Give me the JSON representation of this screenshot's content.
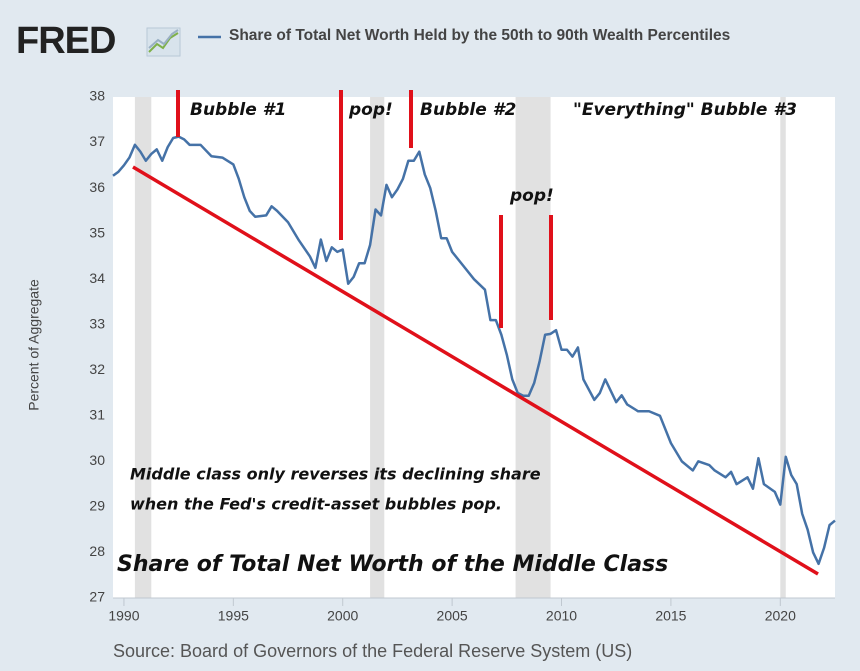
{
  "chart_data": {
    "type": "line",
    "brand": "FRED",
    "y_label": "Percent of Aggregate",
    "source": "Source: Board of Governors of the Federal Reserve System (US)",
    "xlim": [
      1989.5,
      2022.5
    ],
    "xticks": [
      1990,
      1995,
      2000,
      2005,
      2010,
      2015,
      2020
    ],
    "ylim": [
      27,
      38
    ],
    "yticks": [
      27,
      28,
      29,
      30,
      31,
      32,
      33,
      34,
      35,
      36,
      37,
      38
    ],
    "grid": false,
    "recessions": [
      [
        1990.5,
        1991.25
      ],
      [
        2001.25,
        2001.9
      ],
      [
        2007.9,
        2009.5
      ],
      [
        2020,
        2020.25
      ]
    ],
    "annotations": [
      "Bubble #1",
      "pop!",
      "Bubble #2",
      "\"Everything\" Bubble #3",
      "pop!",
      "Middle class only reverses its declining share",
      "when the Fed's credit-asset bubbles pop.",
      "Share of Total Net Worth of the Middle Class"
    ],
    "x": [
      1989.5,
      1989.75,
      1990,
      1990.25,
      1990.5,
      1990.75,
      1991,
      1991.25,
      1991.5,
      1991.75,
      1992,
      1992.25,
      1992.5,
      1992.75,
      1993,
      1993.5,
      1994,
      1994.5,
      1995,
      1995.25,
      1995.5,
      1995.75,
      1996,
      1996.5,
      1996.75,
      1997,
      1997.5,
      1998,
      1998.5,
      1998.75,
      1999,
      1999.25,
      1999.5,
      1999.75,
      2000,
      2000.25,
      2000.5,
      2000.75,
      2001,
      2001.25,
      2001.5,
      2001.75,
      2002,
      2002.25,
      2002.5,
      2002.75,
      2003,
      2003.25,
      2003.5,
      2003.75,
      2004,
      2004.25,
      2004.5,
      2004.75,
      2005,
      2005.5,
      2006,
      2006.5,
      2006.75,
      2007,
      2007.25,
      2007.5,
      2007.75,
      2008,
      2008.25,
      2008.5,
      2008.75,
      2009,
      2009.25,
      2009.5,
      2009.75,
      2010,
      2010.25,
      2010.5,
      2010.75,
      2011,
      2011.5,
      2011.75,
      2012,
      2012.5,
      2012.75,
      2013,
      2013.5,
      2014,
      2014.5,
      2015,
      2015.5,
      2016,
      2016.25,
      2016.75,
      2017,
      2017.5,
      2017.75,
      2018,
      2018.5,
      2018.75,
      2019,
      2019.25,
      2019.75,
      2020,
      2020.25,
      2020.5,
      2020.75,
      2021,
      2021.25,
      2021.5,
      2021.75,
      2022,
      2022.25,
      2022.5
    ],
    "series": [
      {
        "name": "Share of Total Net Worth Held by the 50th to 90th Wealth Percentiles",
        "color": "#4572a7",
        "values": [
          36.27,
          36.36,
          36.5,
          36.67,
          36.95,
          36.8,
          36.6,
          36.75,
          36.85,
          36.6,
          36.9,
          37.1,
          37.13,
          37.07,
          36.95,
          36.95,
          36.7,
          36.67,
          36.52,
          36.2,
          35.8,
          35.5,
          35.37,
          35.4,
          35.6,
          35.5,
          35.25,
          34.85,
          34.5,
          34.25,
          34.87,
          34.4,
          34.7,
          34.6,
          34.65,
          33.9,
          34.05,
          34.35,
          34.35,
          34.75,
          35.53,
          35.4,
          36.07,
          35.8,
          35.97,
          36.2,
          36.6,
          36.6,
          36.8,
          36.3,
          36,
          35.5,
          34.9,
          34.9,
          34.6,
          34.3,
          34,
          33.77,
          33.1,
          33.1,
          32.78,
          32.34,
          31.8,
          31.5,
          31.44,
          31.44,
          31.72,
          32.2,
          32.78,
          32.8,
          32.88,
          32.45,
          32.45,
          32.3,
          32.5,
          31.8,
          31.35,
          31.5,
          31.8,
          31.3,
          31.45,
          31.25,
          31.1,
          31.1,
          31,
          30.4,
          30,
          29.8,
          30,
          29.92,
          29.8,
          29.65,
          29.77,
          29.5,
          29.65,
          29.4,
          30.07,
          29.5,
          29.33,
          29.05,
          30.1,
          29.7,
          29.5,
          28.85,
          28.5,
          28,
          27.75,
          28.1,
          28.6,
          28.7
        ]
      }
    ]
  }
}
